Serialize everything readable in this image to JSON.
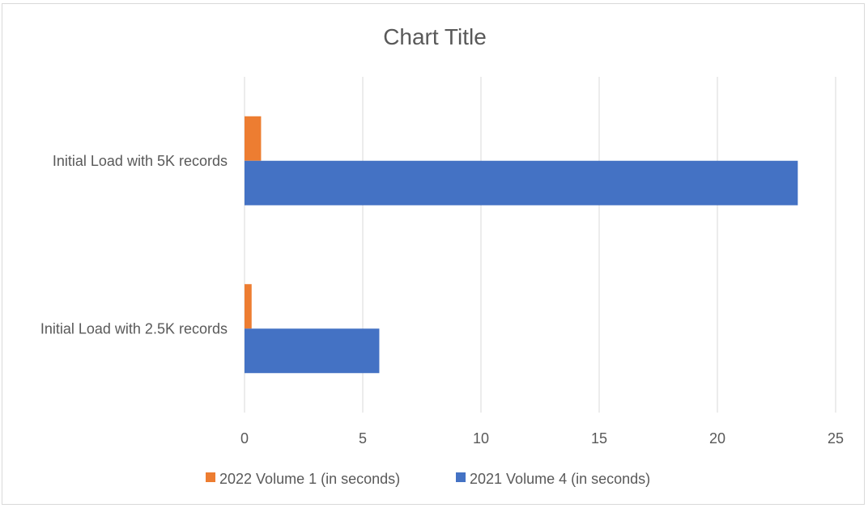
{
  "chart_data": {
    "type": "bar",
    "orientation": "horizontal",
    "title": "Chart Title",
    "categories": [
      "Initial Load with 5K records",
      "Initial Load with 2.5K records"
    ],
    "series": [
      {
        "name": "2022 Volume 1 (in seconds)",
        "color": "#ED7D31",
        "values": [
          0.7,
          0.3
        ]
      },
      {
        "name": "2021 Volume 4 (in seconds)",
        "color": "#4472C4",
        "values": [
          23.4,
          5.7
        ]
      }
    ],
    "xlim": [
      0,
      25
    ],
    "xticks": [
      "0",
      "5",
      "10",
      "15",
      "20",
      "25"
    ],
    "grid": true,
    "legend_position": "bottom"
  }
}
